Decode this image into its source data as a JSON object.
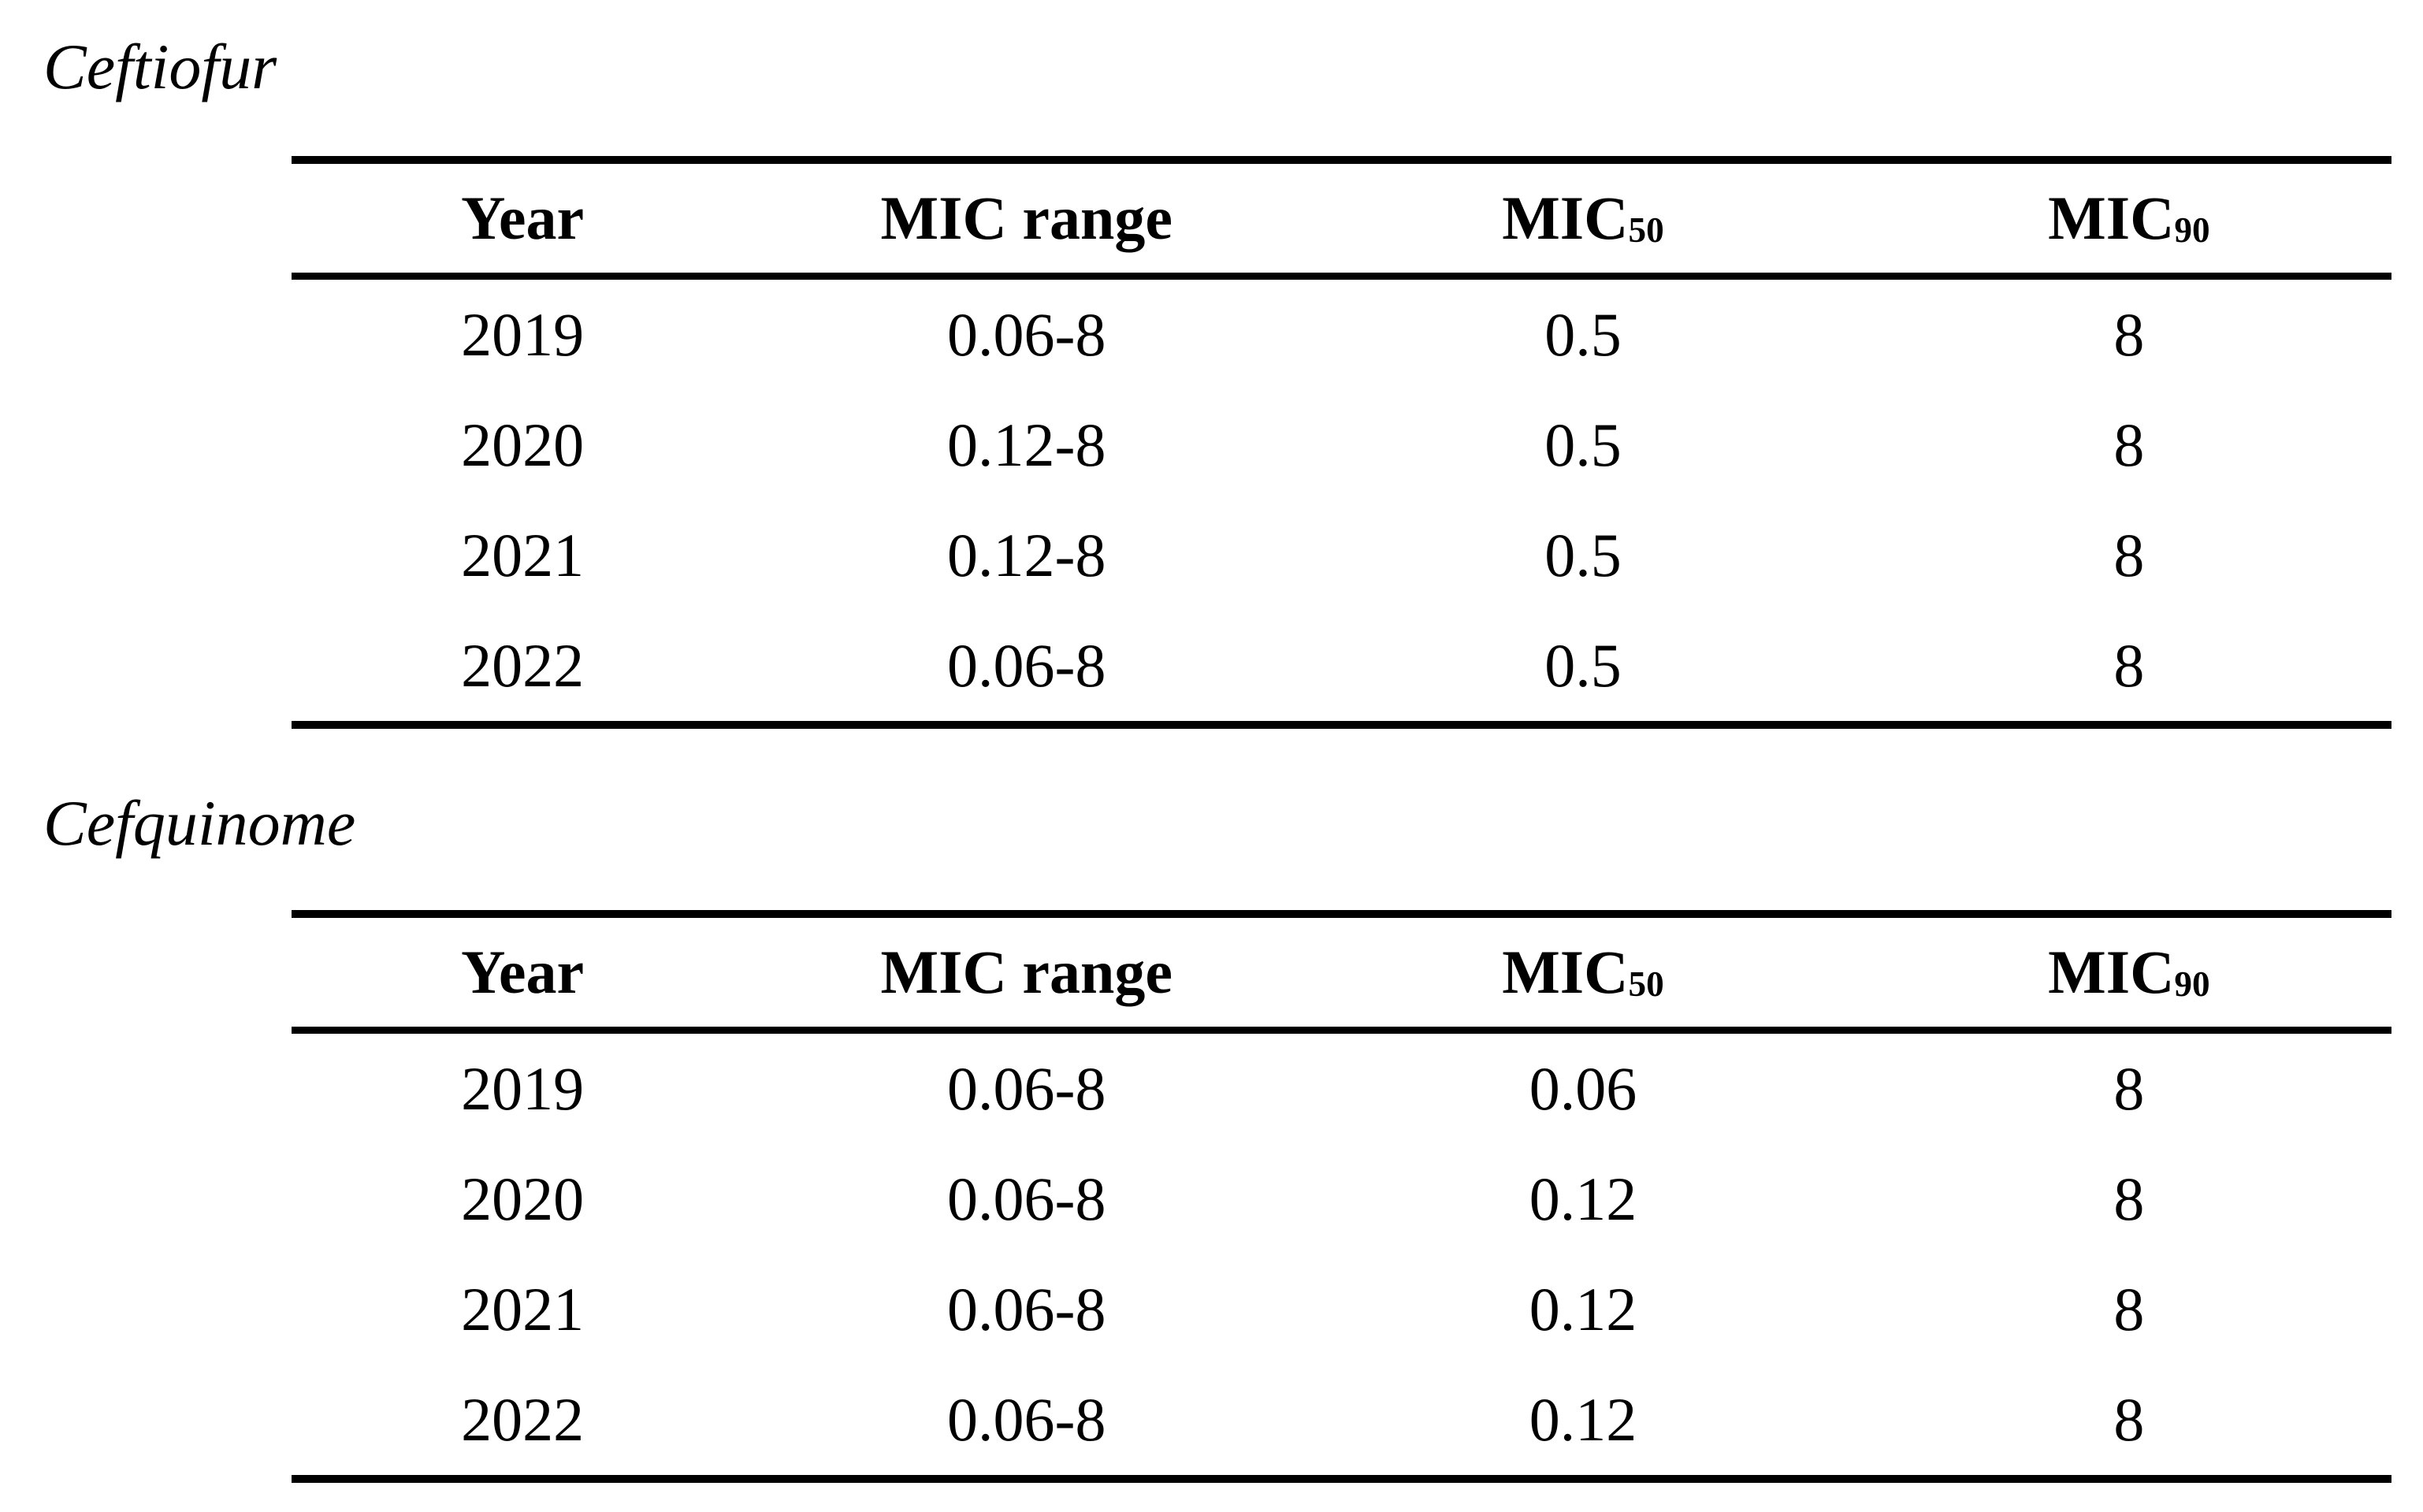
{
  "page": {
    "background_color": "#ffffff",
    "text_color": "#000000"
  },
  "tables": [
    {
      "title": "Ceftiofur",
      "columns": [
        {
          "text": "Year",
          "sub": ""
        },
        {
          "text": "MIC range",
          "sub": ""
        },
        {
          "text": "MIC",
          "sub": "50"
        },
        {
          "text": "MIC",
          "sub": "90"
        }
      ],
      "rows": [
        [
          "2019",
          "0.06-8",
          "0.5",
          "8"
        ],
        [
          "2020",
          "0.12-8",
          "0.5",
          "8"
        ],
        [
          "2021",
          "0.12-8",
          "0.5",
          "8"
        ],
        [
          "2022",
          "0.06-8",
          "0.5",
          "8"
        ]
      ]
    },
    {
      "title": "Cefquinome",
      "columns": [
        {
          "text": "Year",
          "sub": ""
        },
        {
          "text": "MIC range",
          "sub": ""
        },
        {
          "text": "MIC",
          "sub": "50"
        },
        {
          "text": "MIC",
          "sub": "90"
        }
      ],
      "rows": [
        [
          "2019",
          "0.06-8",
          "0.06",
          "8"
        ],
        [
          "2020",
          "0.06-8",
          "0.12",
          "8"
        ],
        [
          "2021",
          "0.06-8",
          "0.12",
          "8"
        ],
        [
          "2022",
          "0.06-8",
          "0.12",
          "8"
        ]
      ]
    }
  ]
}
